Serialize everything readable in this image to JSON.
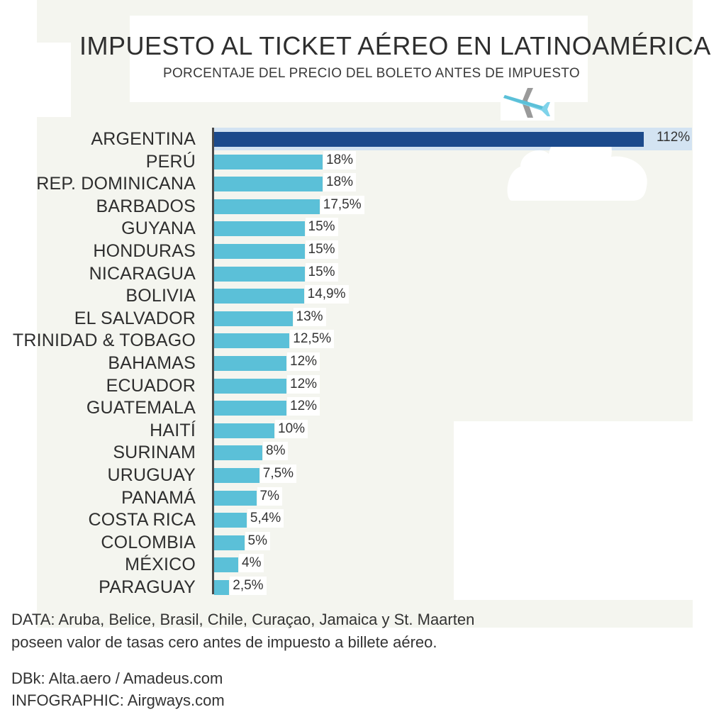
{
  "colors": {
    "highlight_bar": "#1c4a8c",
    "bar": "#5bc0d8",
    "highlight_band": "#d3e3f2",
    "background": "#f4f5ef"
  },
  "icons": {
    "plane": "airplane-icon",
    "cloud": "cloud-icon"
  },
  "chart_data": {
    "type": "bar",
    "orientation": "horizontal",
    "title": "IMPUESTO AL TICKET AÉREO EN LATINOAMÉRICA",
    "subtitle": "PORCENTAJE DEL PRECIO DEL BOLETO ANTES DE IMPUESTO",
    "xlabel": "",
    "ylabel": "",
    "unit": "%",
    "grid": false,
    "categories": [
      "ARGENTINA",
      "PERÚ",
      "REP. DOMINICANA",
      "BARBADOS",
      "GUYANA",
      "HONDURAS",
      "NICARAGUA",
      "BOLIVIA",
      "EL SALVADOR",
      "TRINIDAD & TOBAGO",
      "BAHAMAS",
      "ECUADOR",
      "GUATEMALA",
      "HAITÍ",
      "SURINAM",
      "URUGUAY",
      "PANAMÁ",
      "COSTA RICA",
      "COLOMBIA",
      "MÉXICO",
      "PARAGUAY"
    ],
    "values": [
      112,
      18,
      18,
      17.5,
      15,
      15,
      15,
      14.9,
      13,
      12.5,
      12,
      12,
      12,
      10,
      8,
      7.5,
      7,
      5.4,
      5,
      4,
      2.5
    ],
    "value_labels": [
      "112%",
      "18%",
      "18%",
      "17,5%",
      "15%",
      "15%",
      "15%",
      "14,9%",
      "13%",
      "12,5%",
      "12%",
      "12%",
      "12%",
      "10%",
      "8%",
      "7,5%",
      "7%",
      "5,4%",
      "5%",
      "4%",
      "2,5%"
    ],
    "highlighted": "ARGENTINA"
  },
  "footer": {
    "note_line1": "DATA: Aruba, Belice, Brasil, Chile, Curaçao, Jamaica y St. Maarten",
    "note_line2": "poseen valor de tasas cero antes de impuesto a billete aéreo.",
    "source": "DBk: Alta.aero / Amadeus.com",
    "credit": "INFOGRAPHIC: Airgways.com"
  }
}
